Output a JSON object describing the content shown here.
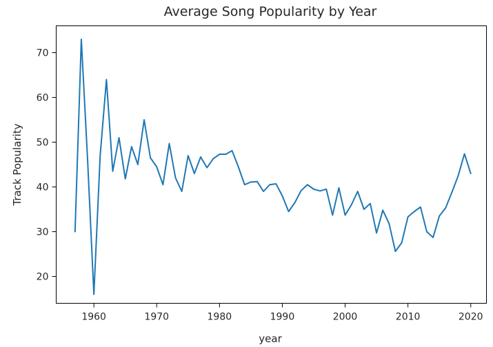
{
  "chart_data": {
    "type": "line",
    "title": "Average Song Popularity by Year",
    "xlabel": "year",
    "ylabel": "Track Popularity",
    "xlim": [
      1954,
      2022.5
    ],
    "ylim": [
      14,
      76
    ],
    "xticks": [
      1960,
      1970,
      1980,
      1990,
      2000,
      2010,
      2020
    ],
    "yticks": [
      20,
      30,
      40,
      50,
      60,
      70
    ],
    "grid": false,
    "legend": "none",
    "color": "#1f77b4",
    "series": [
      {
        "x": [
          1957,
          1958,
          1959,
          1960,
          1961,
          1962,
          1963,
          1964,
          1965,
          1966,
          1967,
          1968,
          1969,
          1970,
          1971,
          1972,
          1973,
          1974,
          1975,
          1976,
          1977,
          1978,
          1979,
          1980,
          1981,
          1982,
          1983,
          1984,
          1985,
          1986,
          1987,
          1988,
          1989,
          1990,
          1991,
          1992,
          1993,
          1994,
          1995,
          1996,
          1997,
          1998,
          1999,
          2000,
          2001,
          2002,
          2003,
          2004,
          2005,
          2006,
          2007,
          2008,
          2009,
          2010,
          2011,
          2012,
          2013,
          2014,
          2015,
          2016,
          2017,
          2018,
          2019,
          2020
        ],
        "values": [
          30.0,
          73.0,
          46.0,
          16.0,
          47.0,
          64.0,
          43.5,
          51.0,
          41.8,
          49.0,
          45.0,
          55.0,
          46.5,
          44.5,
          40.5,
          49.7,
          42.0,
          39.0,
          47.0,
          43.0,
          46.7,
          44.3,
          46.3,
          47.3,
          47.3,
          48.1,
          44.5,
          40.5,
          41.1,
          41.2,
          39.0,
          40.5,
          40.7,
          38.0,
          34.5,
          36.5,
          39.2,
          40.5,
          39.5,
          39.1,
          39.5,
          33.7,
          39.8,
          33.7,
          36.0,
          39.0,
          35.0,
          36.3,
          29.7,
          34.8,
          31.8,
          25.6,
          27.5,
          33.3,
          34.5,
          35.5,
          30.0,
          28.7,
          33.5,
          35.3,
          38.8,
          42.5,
          47.4,
          43.0
        ]
      }
    ]
  }
}
